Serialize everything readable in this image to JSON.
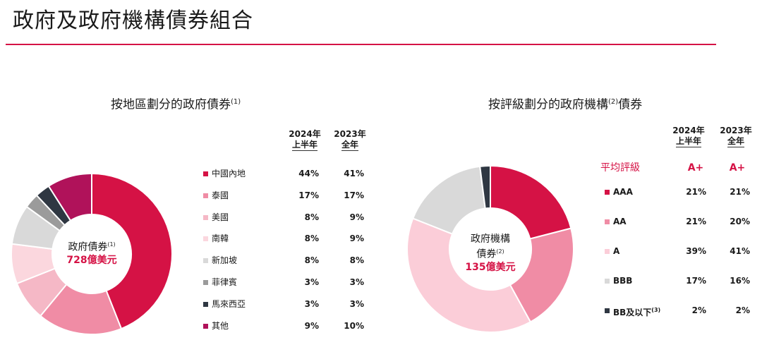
{
  "page": {
    "title": "政府及政府機構債券組合"
  },
  "left": {
    "title": "按地區劃分的政府債券",
    "title_note": "(1)",
    "col1": [
      "2024年",
      "上半年"
    ],
    "col2": [
      "2023年",
      "全年"
    ],
    "center_label": "政府債券",
    "center_note": "(1)",
    "center_amount": "728億美元"
  },
  "right": {
    "title_a": "按評級劃分的政府機構",
    "title_note": "(2)",
    "title_b": "債券",
    "col1": [
      "2024年",
      "上半年"
    ],
    "col2": [
      "2023年",
      "全年"
    ],
    "avg_label": "平均評級",
    "avg_2024": "A+",
    "avg_2023": "A+",
    "center_label_1": "政府機構",
    "center_label_2": "債券",
    "center_note": "(2)",
    "center_amount": "135億美元",
    "bb_note": "(3)"
  },
  "chart_data": [
    {
      "type": "pie",
      "title": "按地區劃分的政府債券(1)",
      "categories": [
        "中國內地",
        "泰國",
        "美國",
        "南韓",
        "新加坡",
        "菲律賓",
        "馬來西亞",
        "其他"
      ],
      "series": [
        {
          "name": "2024年上半年",
          "values": [
            44,
            17,
            8,
            8,
            8,
            3,
            3,
            9
          ],
          "labels": [
            "44%",
            "17%",
            "8%",
            "8%",
            "8%",
            "3%",
            "3%",
            "9%"
          ]
        },
        {
          "name": "2023年全年",
          "values": [
            41,
            17,
            9,
            9,
            8,
            3,
            3,
            10
          ],
          "labels": [
            "41%",
            "17%",
            "9%",
            "9%",
            "8%",
            "3%",
            "3%",
            "10%"
          ]
        }
      ],
      "colors": [
        "#d51245",
        "#f08ca5",
        "#f5b8c6",
        "#fbd7de",
        "#d9d9d9",
        "#9b9b9b",
        "#2f3742",
        "#b0125a"
      ]
    },
    {
      "type": "pie",
      "title": "按評級劃分的政府機構(2)債券",
      "categories": [
        "AAA",
        "AA",
        "A",
        "BBB",
        "BB及以下"
      ],
      "series": [
        {
          "name": "2024年上半年",
          "values": [
            21,
            21,
            39,
            17,
            2
          ],
          "labels": [
            "21%",
            "21%",
            "39%",
            "17%",
            "2%"
          ]
        },
        {
          "name": "2023年全年",
          "values": [
            21,
            20,
            41,
            16,
            2
          ],
          "labels": [
            "21%",
            "20%",
            "41%",
            "16%",
            "2%"
          ]
        }
      ],
      "colors": [
        "#d51245",
        "#f08ca5",
        "#fbcdd8",
        "#d9d9d9",
        "#2f3742"
      ]
    }
  ]
}
